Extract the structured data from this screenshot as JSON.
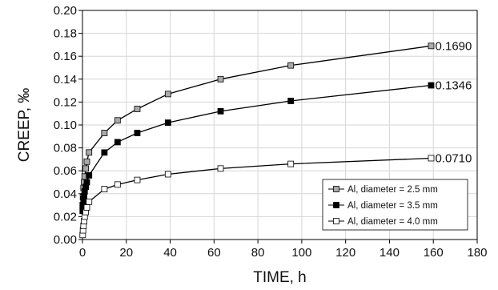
{
  "chart_data": {
    "type": "line",
    "xlabel": "TIME, h",
    "ylabel": "CREEP, ‰",
    "xlim": [
      0,
      180
    ],
    "ylim": [
      0,
      0.2
    ],
    "x_ticks": [
      "0",
      "20",
      "40",
      "60",
      "80",
      "100",
      "120",
      "140",
      "160",
      "180"
    ],
    "y_ticks": [
      "0.00",
      "0.02",
      "0.04",
      "0.06",
      "0.08",
      "0.10",
      "0.12",
      "0.14",
      "0.16",
      "0.18",
      "0.20"
    ],
    "grid": true,
    "legend_position": "bottom-right",
    "series": [
      {
        "name": "Al, diameter = 2.5 mm",
        "marker": "square-gray",
        "color": "#aaaaaa",
        "end_label": "0.1690",
        "points": [
          [
            0.1,
            0.03
          ],
          [
            0.25,
            0.037
          ],
          [
            0.5,
            0.045
          ],
          [
            0.75,
            0.05
          ],
          [
            1,
            0.055
          ],
          [
            1.5,
            0.062
          ],
          [
            2,
            0.068
          ],
          [
            3,
            0.076
          ],
          [
            10,
            0.093
          ],
          [
            16,
            0.104
          ],
          [
            25,
            0.114
          ],
          [
            39,
            0.127
          ],
          [
            63,
            0.14
          ],
          [
            95,
            0.152
          ],
          [
            159,
            0.169
          ]
        ]
      },
      {
        "name": "Al, diameter = 3.5 mm",
        "marker": "square-black",
        "color": "#000000",
        "end_label": "0.1346",
        "points": [
          [
            0.1,
            0.025
          ],
          [
            0.25,
            0.03
          ],
          [
            0.5,
            0.035
          ],
          [
            0.75,
            0.038
          ],
          [
            1,
            0.042
          ],
          [
            1.5,
            0.046
          ],
          [
            2,
            0.05
          ],
          [
            3,
            0.056
          ],
          [
            10,
            0.076
          ],
          [
            16,
            0.085
          ],
          [
            25,
            0.093
          ],
          [
            39,
            0.102
          ],
          [
            63,
            0.112
          ],
          [
            95,
            0.121
          ],
          [
            159,
            0.1346
          ]
        ]
      },
      {
        "name": "Al, diameter = 4.0 mm",
        "marker": "square-white",
        "color": "#ffffff",
        "end_label": "0.0710",
        "points": [
          [
            0.1,
            0.004
          ],
          [
            0.25,
            0.008
          ],
          [
            0.5,
            0.012
          ],
          [
            0.75,
            0.016
          ],
          [
            1,
            0.02
          ],
          [
            1.5,
            0.024
          ],
          [
            2,
            0.028
          ],
          [
            3,
            0.033
          ],
          [
            10,
            0.044
          ],
          [
            16,
            0.048
          ],
          [
            25,
            0.052
          ],
          [
            39,
            0.057
          ],
          [
            63,
            0.062
          ],
          [
            95,
            0.066
          ],
          [
            159,
            0.071
          ]
        ]
      }
    ]
  }
}
